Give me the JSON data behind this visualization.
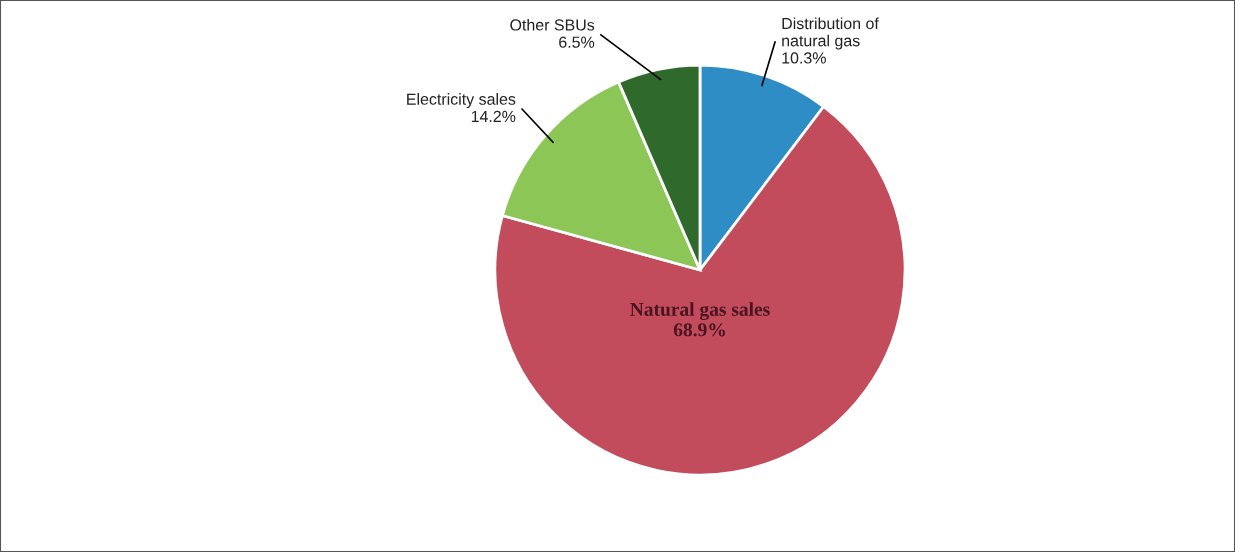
{
  "chart_data": {
    "type": "pie",
    "categories": [
      "Distribution of\nnatural gas",
      "Natural gas sales",
      "Electricity sales",
      "Other SBUs"
    ],
    "values": [
      10.3,
      68.9,
      14.2,
      6.5
    ],
    "value_labels": [
      "10.3%",
      "68.9%",
      "14.2%",
      "6.5%"
    ],
    "colors": [
      "#2f8dc6",
      "#c24b5c",
      "#8cc656",
      "#2f6a2c"
    ],
    "legend": false
  }
}
